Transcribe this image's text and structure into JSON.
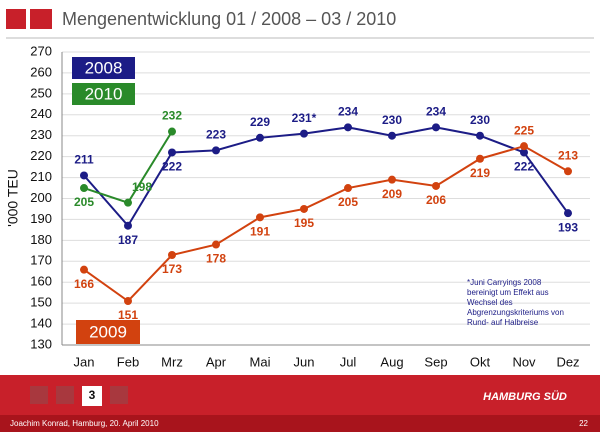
{
  "header": {
    "title": "Mengenentwicklung 01 / 2008 – 03 / 2010"
  },
  "chart_data": {
    "type": "line",
    "ylabel": "'000 TEU",
    "categories": [
      "Jan",
      "Feb",
      "Mrz",
      "Apr",
      "Mai",
      "Jun",
      "Jul",
      "Aug",
      "Sep",
      "Okt",
      "Nov",
      "Dez"
    ],
    "series": [
      {
        "name": "2008",
        "color": "#1c1c86",
        "values": [
          211,
          187,
          222,
          223,
          229,
          231,
          234,
          230,
          234,
          230,
          222,
          193
        ],
        "value_labels": [
          "211",
          "187",
          "222",
          "223",
          "229",
          "231*",
          "234",
          "230",
          "234",
          "230",
          "222",
          "193"
        ]
      },
      {
        "name": "2009",
        "color": "#d2420f",
        "values": [
          166,
          151,
          173,
          178,
          191,
          195,
          205,
          209,
          206,
          219,
          225,
          213
        ]
      },
      {
        "name": "2010",
        "color": "#2a8a2a",
        "values": [
          205,
          198,
          232,
          null,
          null,
          null,
          null,
          null,
          null,
          null,
          null,
          null
        ]
      }
    ],
    "ylim": [
      130,
      270
    ],
    "yticks": [
      130,
      140,
      150,
      160,
      170,
      180,
      190,
      200,
      210,
      220,
      230,
      240,
      250,
      260,
      270
    ],
    "grid": true,
    "note": [
      "*Juni Carryings 2008",
      "bereinigt um Effekt aus",
      "Wechsel des",
      "Abgrenzungskriteriums von",
      "Rund- auf Halbreise"
    ]
  },
  "footer": {
    "slide_number": "3",
    "logo": "HAMBURG SÜD",
    "author": "Joachim Konrad, Hamburg, 20. April 2010",
    "page": "22"
  }
}
